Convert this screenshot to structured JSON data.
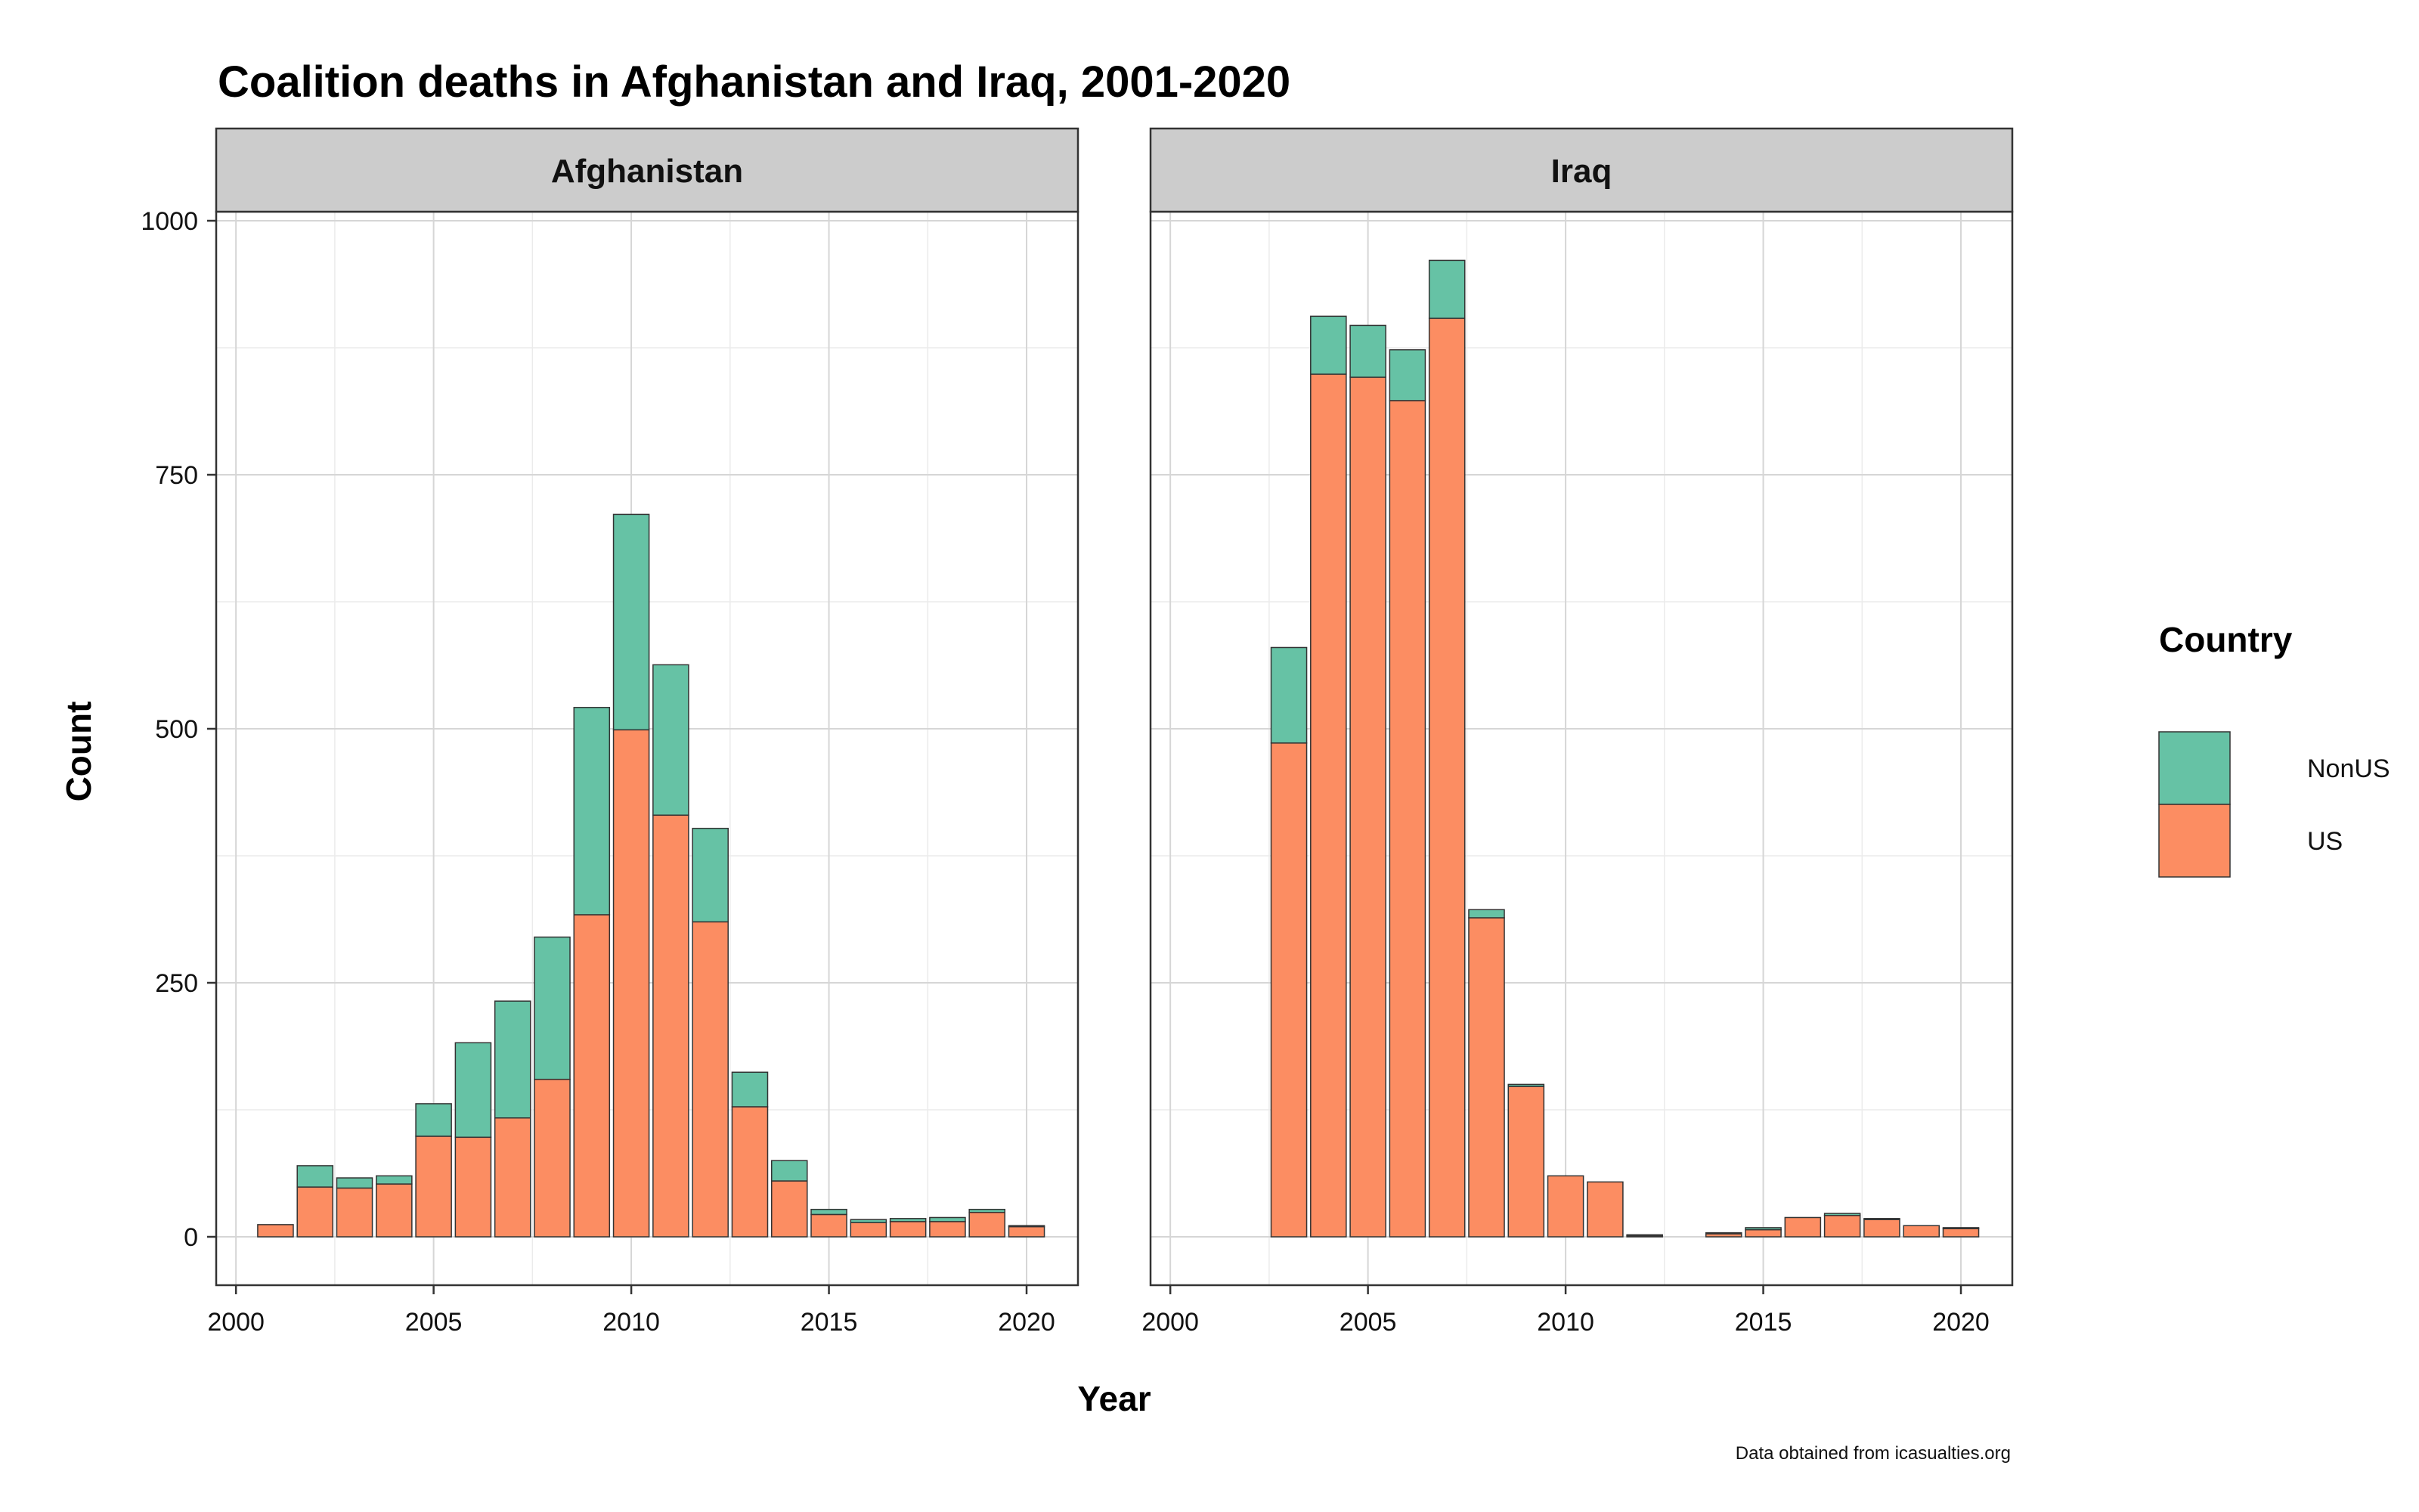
{
  "chart_data": {
    "type": "bar",
    "stacked": true,
    "title": "Coalition deaths in Afghanistan and Iraq, 2001-2020",
    "xlabel": "Year",
    "ylabel": "Count",
    "caption": "Data obtained from icasualties.org",
    "xlim": [
      1999.5,
      2021.3
    ],
    "ylim": [
      -48,
      1000
    ],
    "x_ticks": [
      2000,
      2005,
      2010,
      2015,
      2020
    ],
    "y_ticks": [
      0,
      250,
      500,
      750,
      1000
    ],
    "x_tick_labels": [
      "2000",
      "2005",
      "2010",
      "2015",
      "2020"
    ],
    "y_tick_labels": [
      "0",
      "250",
      "500",
      "750",
      "1000"
    ],
    "grid": true,
    "legend": {
      "title": "Country",
      "position": "right",
      "entries": [
        {
          "name": "NonUS",
          "color": "#66C2A5"
        },
        {
          "name": "US",
          "color": "#FC8D62"
        }
      ]
    },
    "colors": {
      "NonUS": "#66C2A5",
      "US": "#FC8D62",
      "strip_bg": "#CCCCCC",
      "bar_outline": "#333333"
    },
    "panels": [
      {
        "label": "Afghanistan",
        "years": [
          2001,
          2002,
          2003,
          2004,
          2005,
          2006,
          2007,
          2008,
          2009,
          2010,
          2011,
          2012,
          2013,
          2014,
          2015,
          2016,
          2017,
          2018,
          2019,
          2020
        ],
        "series": [
          {
            "name": "US",
            "values": [
              12,
              49,
              48,
              52,
              99,
              98,
              117,
              155,
              317,
              499,
              415,
              310,
              128,
              55,
              22,
              14,
              15,
              15,
              24,
              10
            ]
          },
          {
            "name": "NonUS",
            "values": [
              0,
              21,
              10,
              8,
              32,
              93,
              115,
              140,
              204,
              212,
              148,
              92,
              34,
              20,
              5,
              3,
              3,
              4,
              3,
              1
            ]
          }
        ]
      },
      {
        "label": "Iraq",
        "years": [
          2003,
          2004,
          2005,
          2006,
          2007,
          2008,
          2009,
          2010,
          2011,
          2012,
          2014,
          2015,
          2016,
          2017,
          2018,
          2019,
          2020
        ],
        "series": [
          {
            "name": "US",
            "values": [
              486,
              849,
              846,
              823,
              904,
              314,
              148,
              60,
              54,
              1,
              3,
              7,
              19,
              21,
              17,
              11,
              8
            ]
          },
          {
            "name": "NonUS",
            "values": [
              94,
              57,
              51,
              50,
              57,
              8,
              2,
              0,
              0,
              1,
              1,
              2,
              0,
              2,
              1,
              0,
              1
            ]
          }
        ]
      }
    ]
  }
}
